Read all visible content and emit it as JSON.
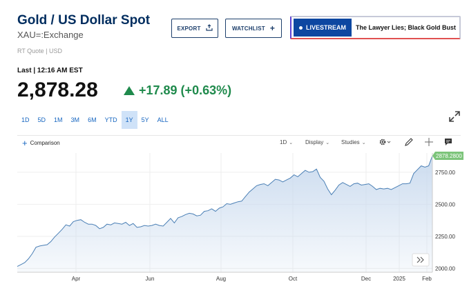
{
  "header": {
    "title": "Gold / US Dollar Spot",
    "subtitle": "XAU=:Exchange",
    "quote_source": "RT Quote | USD"
  },
  "actions": {
    "export_label": "EXPORT",
    "watchlist_label": "WATCHLIST",
    "livestream_label": "LIVESTREAM",
    "livestream_title": "The Lawyer Lies; Black Gold Bust"
  },
  "quote": {
    "last_label": "Last | 12:16 AM EST",
    "price": "2,878.28",
    "change": "+17.89 (+0.63%)",
    "direction": "up",
    "change_color": "#1f8a4c"
  },
  "range_tabs": [
    "1D",
    "5D",
    "1M",
    "3M",
    "6M",
    "YTD",
    "1Y",
    "5Y",
    "ALL"
  ],
  "active_range": "1Y",
  "toolbar": {
    "comparison_label": "Comparison",
    "interval_label": "1D",
    "display_label": "Display",
    "studies_label": "Studies",
    "icons": [
      "gear-icon",
      "pencil-icon",
      "crosshair-icon",
      "comment-icon",
      "expand-icon"
    ]
  },
  "chart_data": {
    "type": "area",
    "x_labels": [
      "Apr",
      "Jun",
      "Aug",
      "Oct",
      "Dec",
      "2025",
      "Feb"
    ],
    "y_ticks": [
      2000,
      2250,
      2500,
      2750
    ],
    "y_tick_labels": [
      "2000.00",
      "2250.00",
      "2500.00",
      "2750.00"
    ],
    "ylim": [
      1970,
      2900
    ],
    "last_value": 2878.28,
    "last_value_label": "2878.2800",
    "line_color": "#4a7fb5",
    "fill_color": "#c9daee",
    "last_tag_color": "#7cc47a",
    "series": [
      {
        "values": [
          2015,
          2030,
          2045,
          2075,
          2115,
          2165,
          2175,
          2180,
          2185,
          2210,
          2245,
          2275,
          2305,
          2340,
          2330,
          2365,
          2375,
          2380,
          2360,
          2345,
          2345,
          2335,
          2310,
          2320,
          2345,
          2340,
          2355,
          2350,
          2345,
          2360,
          2335,
          2350,
          2320,
          2325,
          2335,
          2330,
          2335,
          2345,
          2335,
          2330,
          2360,
          2390,
          2355,
          2395,
          2405,
          2420,
          2430,
          2425,
          2410,
          2415,
          2445,
          2450,
          2465,
          2445,
          2470,
          2480,
          2505,
          2500,
          2510,
          2520,
          2525,
          2560,
          2595,
          2620,
          2645,
          2655,
          2660,
          2645,
          2670,
          2695,
          2690,
          2675,
          2690,
          2705,
          2730,
          2715,
          2740,
          2765,
          2750,
          2755,
          2775,
          2710,
          2680,
          2620,
          2575,
          2610,
          2650,
          2670,
          2655,
          2640,
          2660,
          2665,
          2650,
          2655,
          2660,
          2640,
          2615,
          2625,
          2620,
          2625,
          2615,
          2630,
          2645,
          2660,
          2660,
          2665,
          2740,
          2770,
          2800,
          2790,
          2800,
          2878
        ]
      }
    ]
  }
}
